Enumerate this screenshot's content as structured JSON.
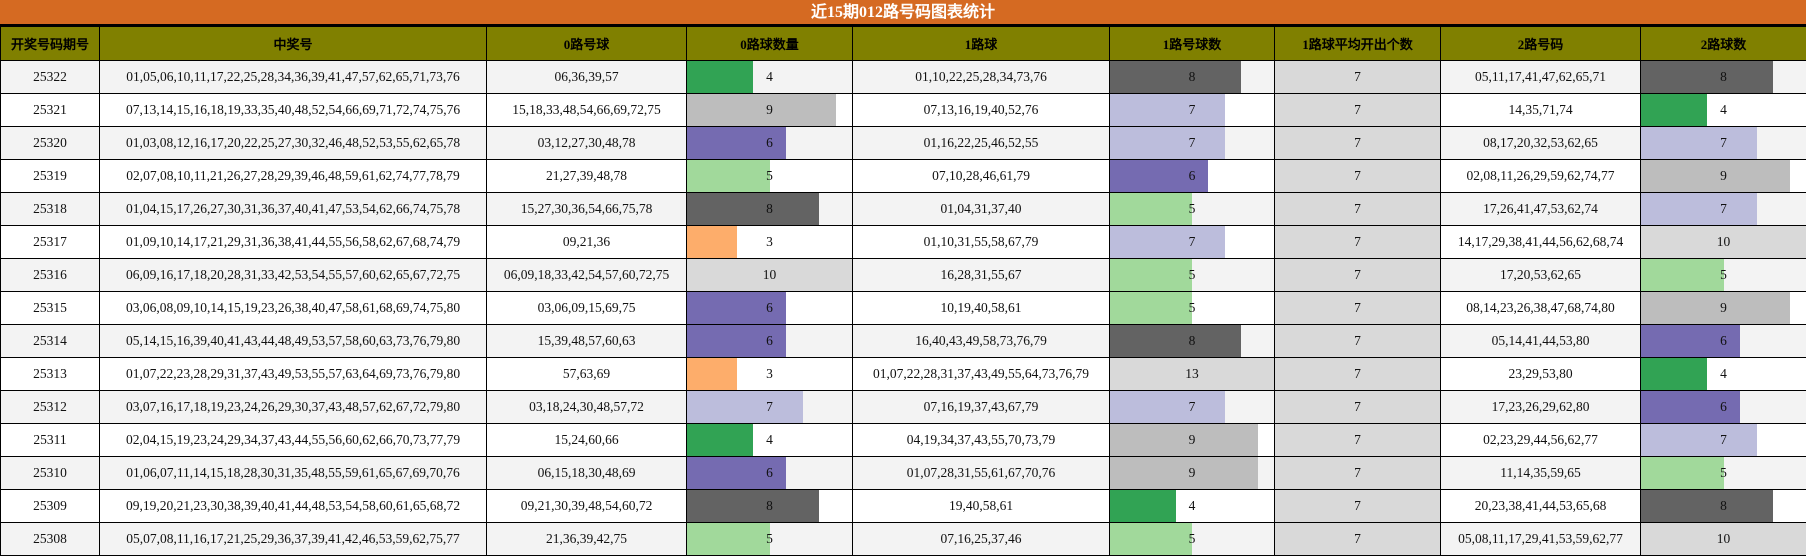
{
  "title": "近15期012路号码图表统计",
  "headers": [
    "开奖号码期号",
    "中奖号",
    "0路号球",
    "0路球数量",
    "1路球",
    "1路号球数",
    "1路球平均开出个数",
    "2路号码",
    "2路球数"
  ],
  "bar_colors": {
    "3": "#fdad6b",
    "4": "#31a354",
    "5": "#a1d99b",
    "6": "#756bb1",
    "7": "#bcbddc",
    "8": "#636363",
    "9": "#bdbdbd",
    "10": "#d9d9d9",
    "13": "#d9d9d9"
  },
  "rows": [
    {
      "period": "25322",
      "numbers": "01,05,06,10,11,17,22,25,28,34,36,39,41,47,57,62,65,71,73,76",
      "r0": "06,36,39,57",
      "r0_count": "4",
      "r1": "01,10,22,25,28,34,73,76",
      "r1_count": "8",
      "r1_avg": "7",
      "r2": "05,11,17,41,47,62,65,71",
      "r2_count": "8"
    },
    {
      "period": "25321",
      "numbers": "07,13,14,15,16,18,19,33,35,40,48,52,54,66,69,71,72,74,75,76",
      "r0": "15,18,33,48,54,66,69,72,75",
      "r0_count": "9",
      "r1": "07,13,16,19,40,52,76",
      "r1_count": "7",
      "r1_avg": "7",
      "r2": "14,35,71,74",
      "r2_count": "4"
    },
    {
      "period": "25320",
      "numbers": "01,03,08,12,16,17,20,22,25,27,30,32,46,48,52,53,55,62,65,78",
      "r0": "03,12,27,30,48,78",
      "r0_count": "6",
      "r1": "01,16,22,25,46,52,55",
      "r1_count": "7",
      "r1_avg": "7",
      "r2": "08,17,20,32,53,62,65",
      "r2_count": "7"
    },
    {
      "period": "25319",
      "numbers": "02,07,08,10,11,21,26,27,28,29,39,46,48,59,61,62,74,77,78,79",
      "r0": "21,27,39,48,78",
      "r0_count": "5",
      "r1": "07,10,28,46,61,79",
      "r1_count": "6",
      "r1_avg": "7",
      "r2": "02,08,11,26,29,59,62,74,77",
      "r2_count": "9"
    },
    {
      "period": "25318",
      "numbers": "01,04,15,17,26,27,30,31,36,37,40,41,47,53,54,62,66,74,75,78",
      "r0": "15,27,30,36,54,66,75,78",
      "r0_count": "8",
      "r1": "01,04,31,37,40",
      "r1_count": "5",
      "r1_avg": "7",
      "r2": "17,26,41,47,53,62,74",
      "r2_count": "7"
    },
    {
      "period": "25317",
      "numbers": "01,09,10,14,17,21,29,31,36,38,41,44,55,56,58,62,67,68,74,79",
      "r0": "09,21,36",
      "r0_count": "3",
      "r1": "01,10,31,55,58,67,79",
      "r1_count": "7",
      "r1_avg": "7",
      "r2": "14,17,29,38,41,44,56,62,68,74",
      "r2_count": "10"
    },
    {
      "period": "25316",
      "numbers": "06,09,16,17,18,20,28,31,33,42,53,54,55,57,60,62,65,67,72,75",
      "r0": "06,09,18,33,42,54,57,60,72,75",
      "r0_count": "10",
      "r1": "16,28,31,55,67",
      "r1_count": "5",
      "r1_avg": "7",
      "r2": "17,20,53,62,65",
      "r2_count": "5"
    },
    {
      "period": "25315",
      "numbers": "03,06,08,09,10,14,15,19,23,26,38,40,47,58,61,68,69,74,75,80",
      "r0": "03,06,09,15,69,75",
      "r0_count": "6",
      "r1": "10,19,40,58,61",
      "r1_count": "5",
      "r1_avg": "7",
      "r2": "08,14,23,26,38,47,68,74,80",
      "r2_count": "9"
    },
    {
      "period": "25314",
      "numbers": "05,14,15,16,39,40,41,43,44,48,49,53,57,58,60,63,73,76,79,80",
      "r0": "15,39,48,57,60,63",
      "r0_count": "6",
      "r1": "16,40,43,49,58,73,76,79",
      "r1_count": "8",
      "r1_avg": "7",
      "r2": "05,14,41,44,53,80",
      "r2_count": "6"
    },
    {
      "period": "25313",
      "numbers": "01,07,22,23,28,29,31,37,43,49,53,55,57,63,64,69,73,76,79,80",
      "r0": "57,63,69",
      "r0_count": "3",
      "r1": "01,07,22,28,31,37,43,49,55,64,73,76,79",
      "r1_count": "13",
      "r1_avg": "7",
      "r2": "23,29,53,80",
      "r2_count": "4"
    },
    {
      "period": "25312",
      "numbers": "03,07,16,17,18,19,23,24,26,29,30,37,43,48,57,62,67,72,79,80",
      "r0": "03,18,24,30,48,57,72",
      "r0_count": "7",
      "r1": "07,16,19,37,43,67,79",
      "r1_count": "7",
      "r1_avg": "7",
      "r2": "17,23,26,29,62,80",
      "r2_count": "6"
    },
    {
      "period": "25311",
      "numbers": "02,04,15,19,23,24,29,34,37,43,44,55,56,60,62,66,70,73,77,79",
      "r0": "15,24,60,66",
      "r0_count": "4",
      "r1": "04,19,34,37,43,55,70,73,79",
      "r1_count": "9",
      "r1_avg": "7",
      "r2": "02,23,29,44,56,62,77",
      "r2_count": "7"
    },
    {
      "period": "25310",
      "numbers": "01,06,07,11,14,15,18,28,30,31,35,48,55,59,61,65,67,69,70,76",
      "r0": "06,15,18,30,48,69",
      "r0_count": "6",
      "r1": "01,07,28,31,55,61,67,70,76",
      "r1_count": "9",
      "r1_avg": "7",
      "r2": "11,14,35,59,65",
      "r2_count": "5"
    },
    {
      "period": "25309",
      "numbers": "09,19,20,21,23,30,38,39,40,41,44,48,53,54,58,60,61,65,68,72",
      "r0": "09,21,30,39,48,54,60,72",
      "r0_count": "8",
      "r1": "19,40,58,61",
      "r1_count": "4",
      "r1_avg": "7",
      "r2": "20,23,38,41,44,53,65,68",
      "r2_count": "8"
    },
    {
      "period": "25308",
      "numbers": "05,07,08,11,16,17,21,25,29,36,37,39,41,42,46,53,59,62,75,77",
      "r0": "21,36,39,42,75",
      "r0_count": "5",
      "r1": "07,16,25,37,46",
      "r1_count": "5",
      "r1_avg": "7",
      "r2": "05,08,11,17,29,41,53,59,62,77",
      "r2_count": "10"
    }
  ]
}
